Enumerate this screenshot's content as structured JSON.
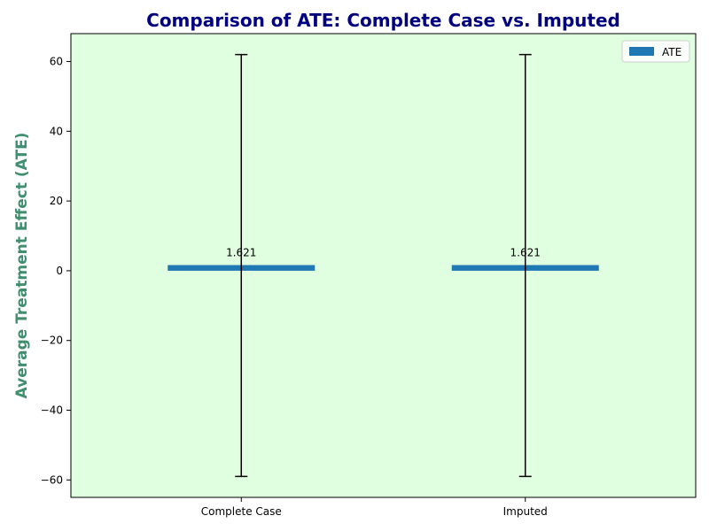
{
  "chart_data": {
    "type": "bar",
    "title": "Comparison of ATE: Complete Case vs. Imputed",
    "xlabel": "",
    "ylabel": "Average Treatment Effect (ATE)",
    "categories": [
      "Complete Case",
      "Imputed"
    ],
    "series": [
      {
        "name": "ATE",
        "values": [
          1.621,
          1.621
        ],
        "error_low": [
          -59,
          -59
        ],
        "error_high": [
          62,
          62
        ]
      }
    ],
    "data_labels": [
      "1.621",
      "1.621"
    ],
    "ylim": [
      -65,
      68
    ],
    "yticks": [
      -60,
      -40,
      -20,
      0,
      20,
      40,
      60
    ],
    "grid": false,
    "legend_position": "top-right"
  },
  "colors": {
    "background": "#e0ffe0",
    "bar": "#1f77b4",
    "title": "#000080",
    "ylabel": "#3f8f6f",
    "error_bar": "#000000"
  }
}
